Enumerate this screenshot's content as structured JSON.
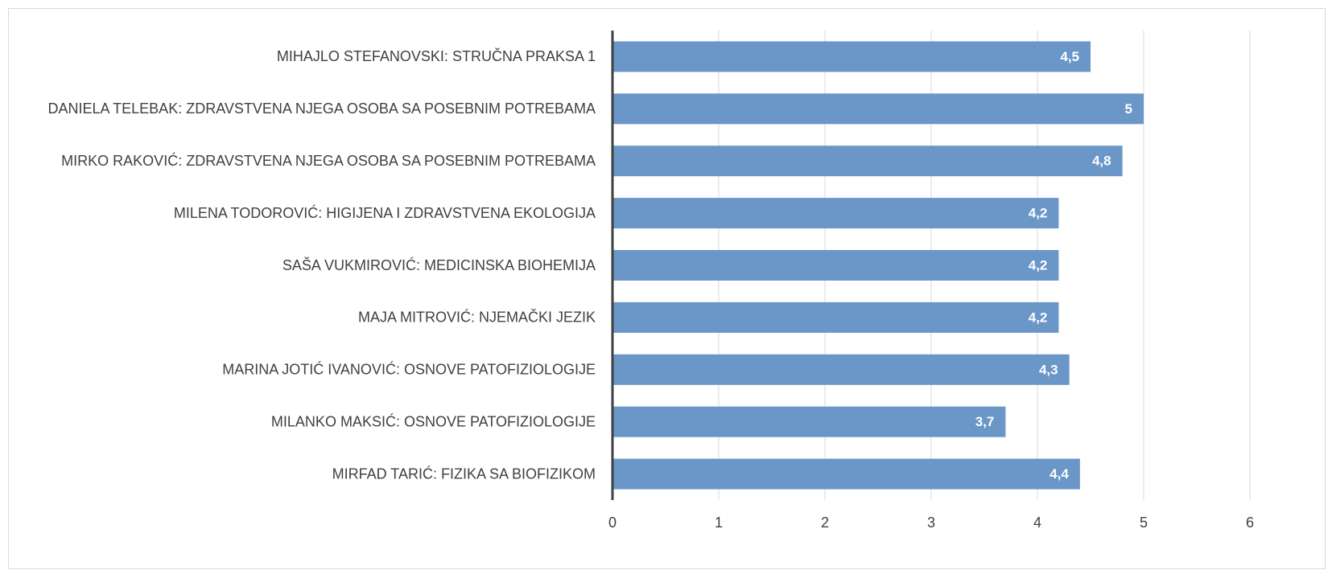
{
  "chart_data": {
    "type": "bar",
    "categories": [
      "MIHAJLO STEFANOVSKI: STRUČNA PRAKSA 1",
      "DANIELA TELEBAK: ZDRAVSTVENA NJEGA OSOBA SA POSEBNIM POTREBAMA",
      "MIRKO RAKOVIĆ: ZDRAVSTVENA NJEGA OSOBA SA POSEBNIM POTREBAMA",
      "MILENA TODOROVIĆ: HIGIJENA I ZDRAVSTVENA EKOLOGIJA",
      "SAŠA VUKMIROVIĆ: MEDICINSKA BIOHEMIJA",
      "MAJA MITROVIĆ: NJEMAČKI JEZIK",
      "MARINA JOTIĆ IVANOVIĆ: OSNOVE PATOFIZIOLOGIJE",
      "MILANKO MAKSIĆ: OSNOVE PATOFIZIOLOGIJE",
      "MIRFAD TARIĆ: FIZIKA SA BIOFIZIKOM"
    ],
    "values": [
      4.5,
      5,
      4.8,
      4.2,
      4.2,
      4.2,
      4.3,
      3.7,
      4.4
    ],
    "value_labels": [
      "4,5",
      "5",
      "4,8",
      "4,2",
      "4,2",
      "4,2",
      "4,3",
      "3,7",
      "4,4"
    ],
    "color": "#6a96c8",
    "xlim": [
      0,
      6
    ],
    "xticks": [
      0,
      1,
      2,
      3,
      4,
      5,
      6
    ],
    "grid": true
  }
}
